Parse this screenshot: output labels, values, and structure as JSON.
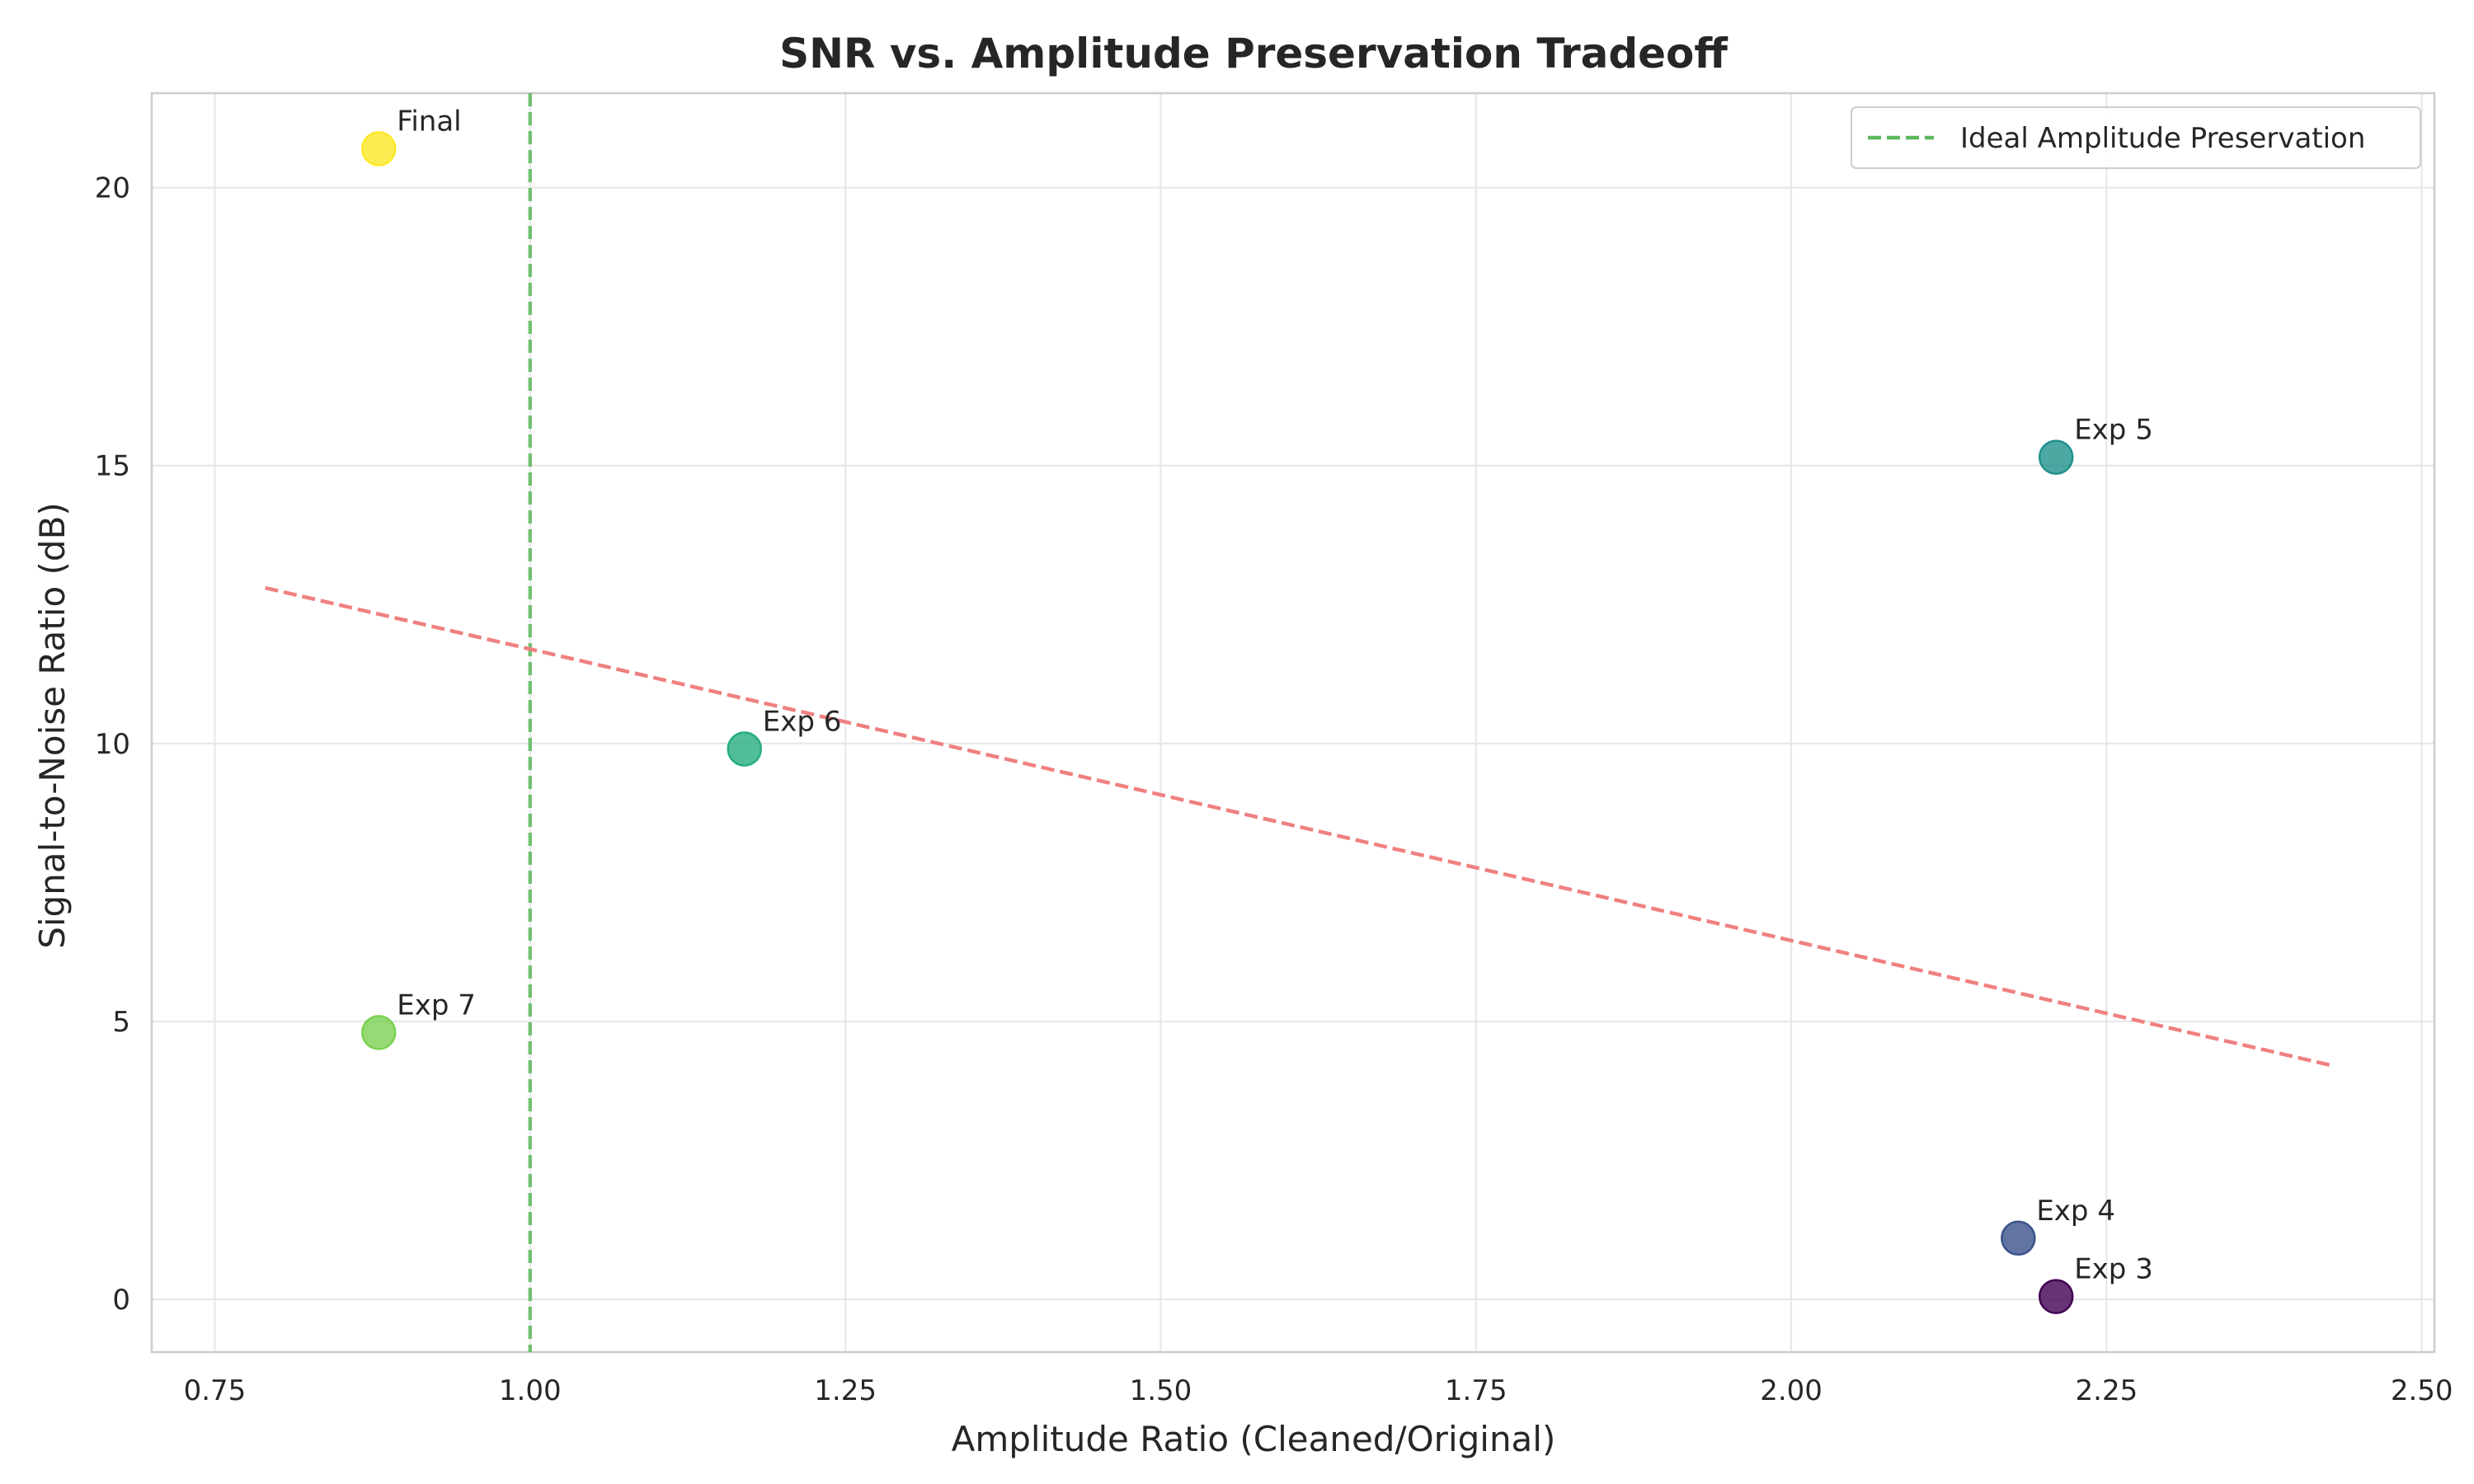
{
  "chart_data": {
    "type": "scatter",
    "title": "SNR vs. Amplitude Preservation Tradeoff",
    "xlabel": "Amplitude Ratio (Cleaned/Original)",
    "ylabel": "Signal-to-Noise Ratio (dB)",
    "xlim": [
      0.7,
      2.51
    ],
    "ylim": [
      -0.95,
      21.7
    ],
    "xticks": [
      "0.75",
      "1.00",
      "1.25",
      "1.50",
      "1.75",
      "2.00",
      "2.25",
      "2.50"
    ],
    "xtick_values": [
      0.75,
      1.0,
      1.25,
      1.5,
      1.75,
      2.0,
      2.25,
      2.5
    ],
    "yticks": [
      "0",
      "5",
      "10",
      "15",
      "20"
    ],
    "ytick_values": [
      0,
      5,
      10,
      15,
      20
    ],
    "grid": true,
    "points": [
      {
        "label": "Exp 3",
        "x": 2.21,
        "y": 0.05,
        "color": "#440154"
      },
      {
        "label": "Exp 4",
        "x": 2.18,
        "y": 1.1,
        "color": "#3b528b"
      },
      {
        "label": "Exp 5",
        "x": 2.21,
        "y": 15.15,
        "color": "#21918c"
      },
      {
        "label": "Exp 6",
        "x": 1.17,
        "y": 9.9,
        "color": "#27ad81"
      },
      {
        "label": "Exp 7",
        "x": 0.88,
        "y": 4.8,
        "color": "#7ad151"
      },
      {
        "label": "Final",
        "x": 0.88,
        "y": 20.7,
        "color": "#fde725"
      }
    ],
    "trend_line": {
      "x": [
        0.79,
        2.43
      ],
      "y": [
        12.8,
        4.2
      ],
      "color": "#f08080"
    },
    "reference_line": {
      "name": "Ideal Amplitude Preservation",
      "x": 1.0,
      "color": "#5cb85c"
    },
    "legend": {
      "placement": "top-right",
      "entries": [
        "Ideal Amplitude Preservation"
      ]
    }
  }
}
